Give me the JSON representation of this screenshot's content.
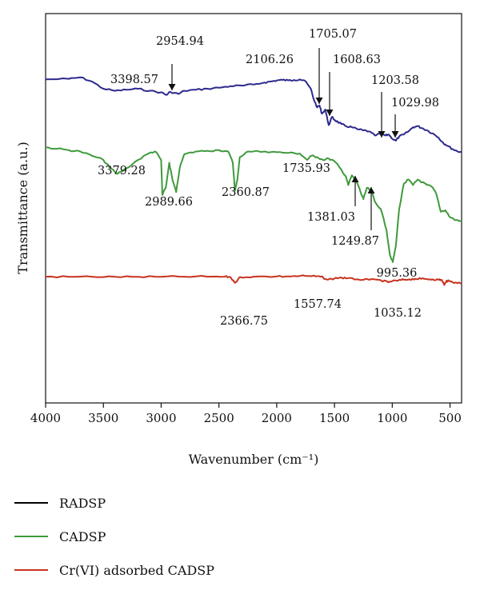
{
  "chart_data": {
    "type": "line",
    "xlabel": "Wavenumber (cm⁻¹)",
    "ylabel": "Transmittance (a.u.)",
    "xlim": [
      4000,
      400
    ],
    "x_ticks": [
      4000,
      3500,
      3000,
      2500,
      2000,
      1500,
      1000,
      500
    ],
    "series": [
      {
        "name": "RADSP",
        "color": "#2d2a8c",
        "points": [
          [
            4000,
            0.89
          ],
          [
            3800,
            0.895
          ],
          [
            3700,
            0.91
          ],
          [
            3600,
            0.87
          ],
          [
            3500,
            0.8
          ],
          [
            3398.57,
            0.78
          ],
          [
            3300,
            0.79
          ],
          [
            3200,
            0.8
          ],
          [
            3100,
            0.78
          ],
          [
            3000,
            0.765
          ],
          [
            2954.94,
            0.74
          ],
          [
            2920,
            0.77
          ],
          [
            2850,
            0.75
          ],
          [
            2800,
            0.78
          ],
          [
            2700,
            0.79
          ],
          [
            2600,
            0.8
          ],
          [
            2500,
            0.81
          ],
          [
            2400,
            0.825
          ],
          [
            2300,
            0.83
          ],
          [
            2200,
            0.84
          ],
          [
            2106.26,
            0.86
          ],
          [
            2050,
            0.87
          ],
          [
            2000,
            0.88
          ],
          [
            1950,
            0.885
          ],
          [
            1900,
            0.88
          ],
          [
            1850,
            0.885
          ],
          [
            1800,
            0.89
          ],
          [
            1760,
            0.88
          ],
          [
            1705.07,
            0.8
          ],
          [
            1680,
            0.7
          ],
          [
            1650,
            0.62
          ],
          [
            1630,
            0.64
          ],
          [
            1608.63,
            0.56
          ],
          [
            1580,
            0.6
          ],
          [
            1550,
            0.45
          ],
          [
            1520,
            0.53
          ],
          [
            1500,
            0.5
          ],
          [
            1470,
            0.48
          ],
          [
            1440,
            0.46
          ],
          [
            1400,
            0.44
          ],
          [
            1350,
            0.43
          ],
          [
            1300,
            0.41
          ],
          [
            1250,
            0.4
          ],
          [
            1203.58,
            0.39
          ],
          [
            1150,
            0.35
          ],
          [
            1100,
            0.37
          ],
          [
            1060,
            0.35
          ],
          [
            1029.98,
            0.36
          ],
          [
            1000,
            0.32
          ],
          [
            970,
            0.3
          ],
          [
            940,
            0.34
          ],
          [
            900,
            0.36
          ],
          [
            860,
            0.39
          ],
          [
            820,
            0.43
          ],
          [
            780,
            0.44
          ],
          [
            740,
            0.42
          ],
          [
            700,
            0.4
          ],
          [
            650,
            0.37
          ],
          [
            600,
            0.33
          ],
          [
            560,
            0.28
          ],
          [
            520,
            0.25
          ],
          [
            480,
            0.22
          ],
          [
            440,
            0.2
          ],
          [
            400,
            0.19
          ]
        ]
      },
      {
        "name": "CADSP",
        "color": "#3f9a3c",
        "points": [
          [
            4000,
            0.89
          ],
          [
            3900,
            0.88
          ],
          [
            3800,
            0.87
          ],
          [
            3700,
            0.86
          ],
          [
            3600,
            0.83
          ],
          [
            3500,
            0.8
          ],
          [
            3450,
            0.75
          ],
          [
            3379.28,
            0.7
          ],
          [
            3300,
            0.74
          ],
          [
            3200,
            0.8
          ],
          [
            3100,
            0.85
          ],
          [
            3050,
            0.86
          ],
          [
            3000,
            0.8
          ],
          [
            2989.66,
            0.55
          ],
          [
            2960,
            0.6
          ],
          [
            2930,
            0.78
          ],
          [
            2900,
            0.65
          ],
          [
            2870,
            0.57
          ],
          [
            2840,
            0.74
          ],
          [
            2800,
            0.84
          ],
          [
            2700,
            0.86
          ],
          [
            2600,
            0.865
          ],
          [
            2500,
            0.87
          ],
          [
            2420,
            0.86
          ],
          [
            2380,
            0.78
          ],
          [
            2360.87,
            0.58
          ],
          [
            2340,
            0.66
          ],
          [
            2320,
            0.82
          ],
          [
            2250,
            0.86
          ],
          [
            2100,
            0.86
          ],
          [
            2000,
            0.855
          ],
          [
            1900,
            0.85
          ],
          [
            1800,
            0.845
          ],
          [
            1735.93,
            0.8
          ],
          [
            1700,
            0.83
          ],
          [
            1650,
            0.82
          ],
          [
            1600,
            0.8
          ],
          [
            1550,
            0.81
          ],
          [
            1500,
            0.79
          ],
          [
            1450,
            0.74
          ],
          [
            1400,
            0.68
          ],
          [
            1381.03,
            0.62
          ],
          [
            1350,
            0.69
          ],
          [
            1300,
            0.63
          ],
          [
            1270,
            0.56
          ],
          [
            1249.87,
            0.52
          ],
          [
            1220,
            0.6
          ],
          [
            1180,
            0.58
          ],
          [
            1150,
            0.5
          ],
          [
            1100,
            0.45
          ],
          [
            1050,
            0.3
          ],
          [
            1020,
            0.12
          ],
          [
            995.36,
            0.07
          ],
          [
            970,
            0.18
          ],
          [
            940,
            0.45
          ],
          [
            900,
            0.63
          ],
          [
            860,
            0.66
          ],
          [
            820,
            0.62
          ],
          [
            780,
            0.66
          ],
          [
            740,
            0.64
          ],
          [
            700,
            0.62
          ],
          [
            660,
            0.61
          ],
          [
            620,
            0.56
          ],
          [
            580,
            0.43
          ],
          [
            540,
            0.44
          ],
          [
            500,
            0.39
          ],
          [
            450,
            0.37
          ],
          [
            400,
            0.36
          ]
        ]
      },
      {
        "name": "Cr(VI) adsorbed CADSP",
        "color": "#c8321e",
        "points": [
          [
            4000,
            0.89
          ],
          [
            3800,
            0.885
          ],
          [
            3600,
            0.89
          ],
          [
            3400,
            0.885
          ],
          [
            3200,
            0.885
          ],
          [
            3000,
            0.885
          ],
          [
            2800,
            0.89
          ],
          [
            2600,
            0.89
          ],
          [
            2450,
            0.89
          ],
          [
            2400,
            0.88
          ],
          [
            2366.75,
            0.76
          ],
          [
            2340,
            0.8
          ],
          [
            2320,
            0.88
          ],
          [
            2200,
            0.89
          ],
          [
            2000,
            0.895
          ],
          [
            1900,
            0.895
          ],
          [
            1800,
            0.905
          ],
          [
            1700,
            0.9
          ],
          [
            1620,
            0.89
          ],
          [
            1557.74,
            0.82
          ],
          [
            1500,
            0.85
          ],
          [
            1450,
            0.87
          ],
          [
            1400,
            0.85
          ],
          [
            1300,
            0.83
          ],
          [
            1200,
            0.82
          ],
          [
            1100,
            0.81
          ],
          [
            1035.12,
            0.76
          ],
          [
            1000,
            0.79
          ],
          [
            950,
            0.8
          ],
          [
            900,
            0.82
          ],
          [
            850,
            0.83
          ],
          [
            800,
            0.84
          ],
          [
            750,
            0.84
          ],
          [
            700,
            0.835
          ],
          [
            650,
            0.83
          ],
          [
            600,
            0.82
          ],
          [
            570,
            0.81
          ],
          [
            550,
            0.7
          ],
          [
            530,
            0.8
          ],
          [
            500,
            0.78
          ],
          [
            450,
            0.76
          ],
          [
            400,
            0.73
          ]
        ]
      }
    ],
    "annotations": [
      {
        "text": "2954.94",
        "arrow": "down"
      },
      {
        "text": "3398.57"
      },
      {
        "text": "2106.26"
      },
      {
        "text": "1705.07",
        "arrow": "down"
      },
      {
        "text": "1608.63",
        "arrow": "down"
      },
      {
        "text": "1203.58",
        "arrow": "down"
      },
      {
        "text": "1029.98",
        "arrow": "down"
      },
      {
        "text": "3379.28"
      },
      {
        "text": "2989.66"
      },
      {
        "text": "2360.87"
      },
      {
        "text": "1735.93"
      },
      {
        "text": "1381.03",
        "arrow": "up"
      },
      {
        "text": "1249.87",
        "arrow": "up"
      },
      {
        "text": "995.36"
      },
      {
        "text": "2366.75"
      },
      {
        "text": "1557.74"
      },
      {
        "text": "1035.12"
      }
    ],
    "legend_position": "bottom-left",
    "grid": false
  }
}
